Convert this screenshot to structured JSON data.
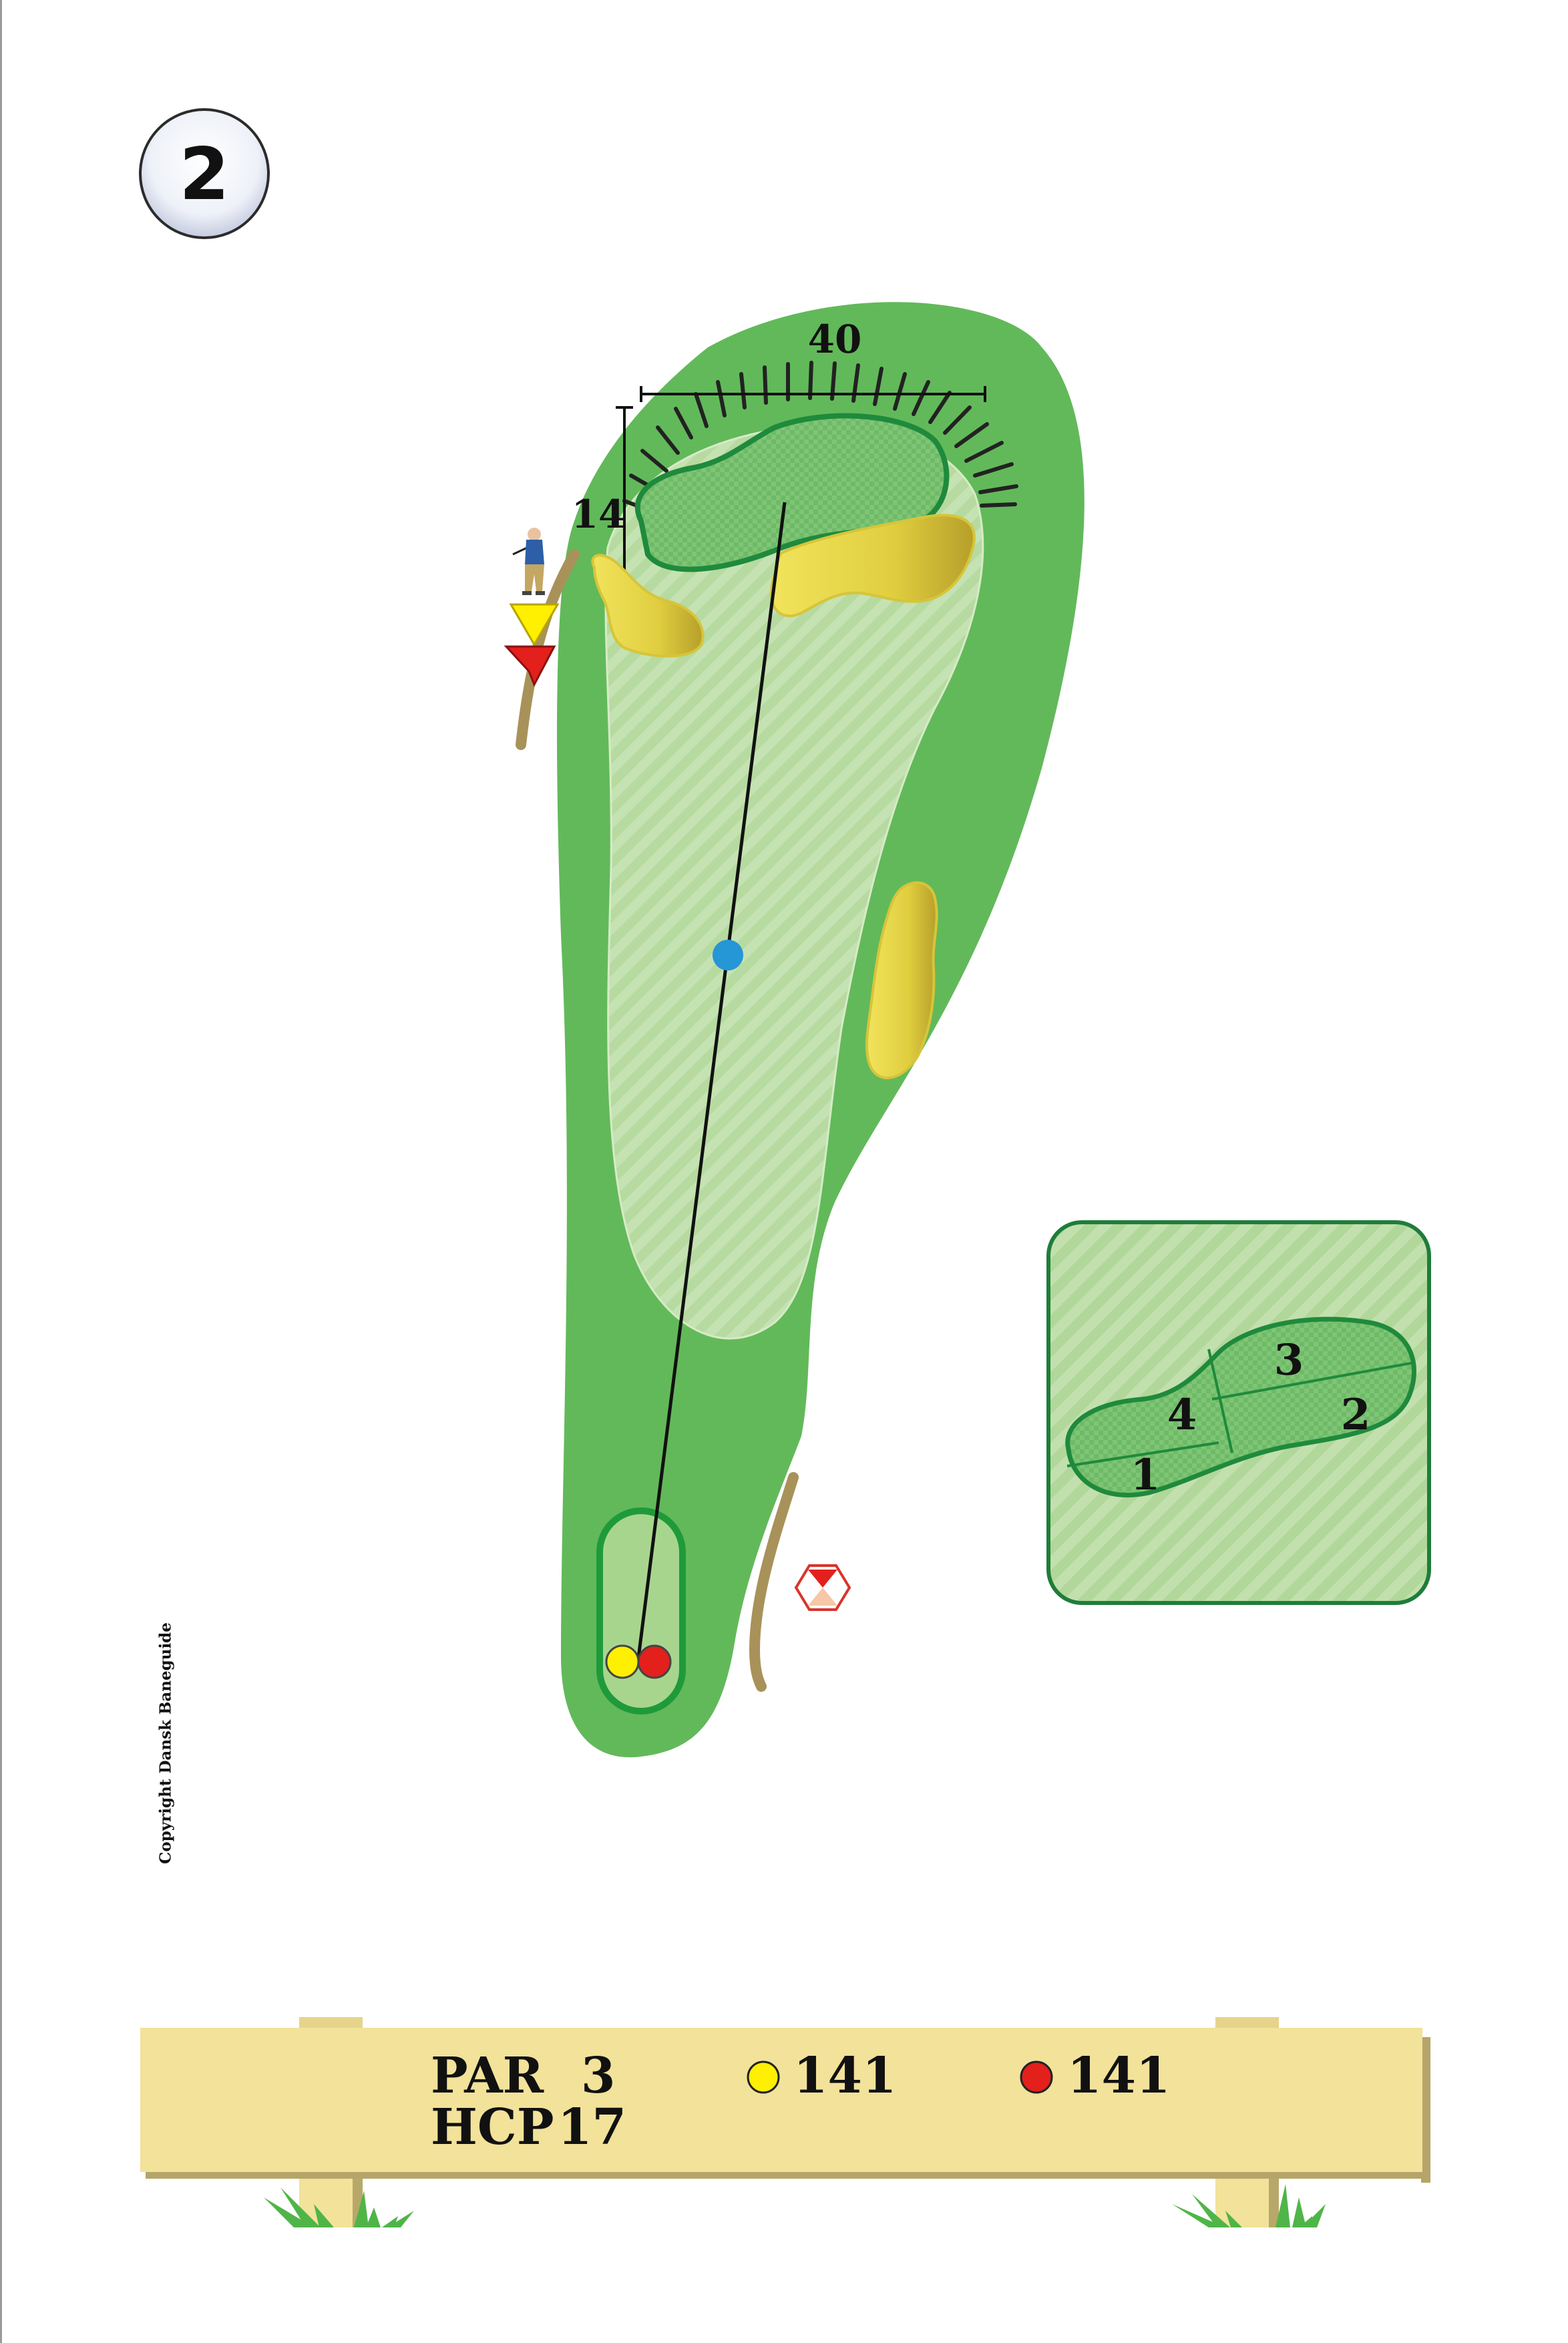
{
  "hole": {
    "number": "2"
  },
  "green_dimensions": {
    "width": "40",
    "depth": "14"
  },
  "green_zones": [
    "1",
    "2",
    "3",
    "4"
  ],
  "scorecard": {
    "par_label": "PAR",
    "par_value": "3",
    "hcp_label": "HCP",
    "hcp_value": "17",
    "tees": [
      {
        "color": "yellow",
        "hex": "#ffef00",
        "length": "141"
      },
      {
        "color": "red",
        "hex": "#e3201b",
        "length": "141"
      }
    ]
  },
  "copyright": "Copyright Dansk Baneguide",
  "icons": [
    "golfer-icon",
    "yellow-tee-marker-icon",
    "red-tee-marker-icon",
    "hazard-marker-icon",
    "aim-point-icon"
  ],
  "colors": {
    "rough": "#62b95a",
    "fairway": "#b8dba0",
    "green": "#6cbb64",
    "green_outline": "#1f8a3c",
    "bunker": "#e2d349",
    "path": "#a8925a",
    "aim_point": "#2596d6",
    "board": "#f2e29a"
  }
}
